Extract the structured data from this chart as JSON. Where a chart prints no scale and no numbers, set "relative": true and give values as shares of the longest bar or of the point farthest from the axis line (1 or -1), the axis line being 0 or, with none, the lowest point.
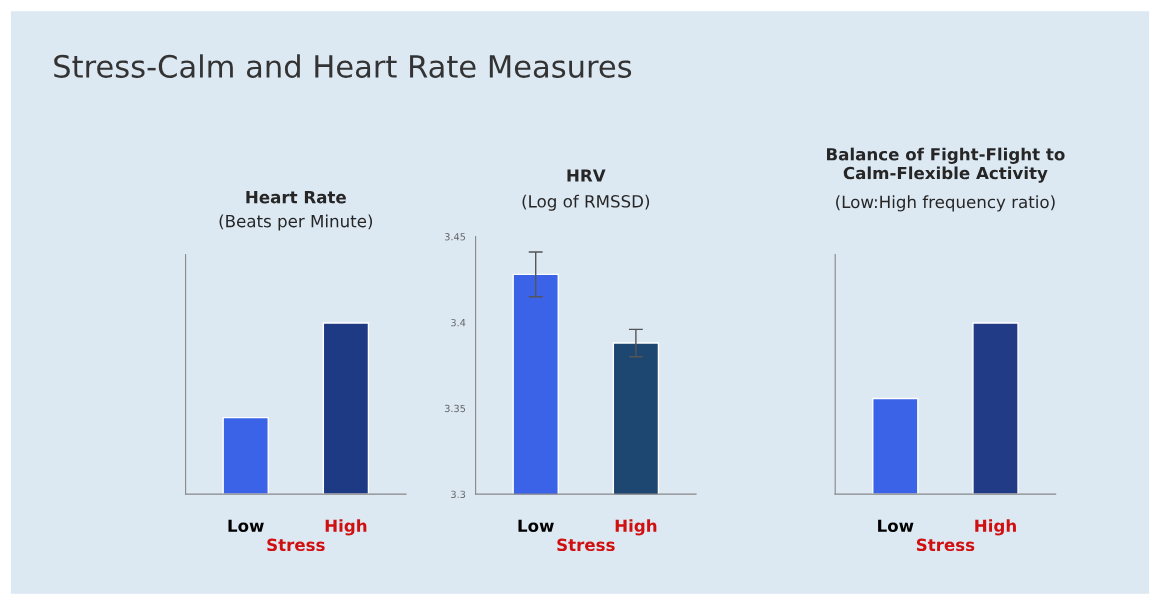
{
  "chart_data": [
    {
      "type": "bar",
      "title": "Heart Rate",
      "subtitle": "(Beats per Minute)",
      "xlabel": "Stress",
      "annotations": [
        "Stress-Calm and Heart Rate Measures"
      ],
      "categories": [
        "Low",
        "High"
      ],
      "relative": true,
      "colors": [
        "#3a63e8",
        "#1f3a85"
      ],
      "values": [
        0.447,
        1
      ]
    },
    {
      "type": "bar",
      "title": "HRV",
      "subtitle": "(Log of RMSSD)",
      "xlabel": "Stress",
      "categories": [
        "Low",
        "High"
      ],
      "colors": [
        "#3a63e8",
        "#1d4670"
      ],
      "values": [
        3.428,
        3.388
      ],
      "errors": [
        0.013,
        0.008
      ],
      "ylim": [
        3.3,
        3.45
      ],
      "yticks": [
        3.3,
        3.35,
        3.4,
        3.45
      ]
    },
    {
      "type": "bar",
      "title": "Balance of Fight-Flight to\nCalm-Flexible Activity",
      "subtitle": "(Low:High frequency ratio)",
      "xlabel": "Stress",
      "categories": [
        "Low",
        "High"
      ],
      "relative": true,
      "colors": [
        "#3a63e8",
        "#213b86"
      ],
      "values": [
        0.559,
        1
      ]
    }
  ]
}
